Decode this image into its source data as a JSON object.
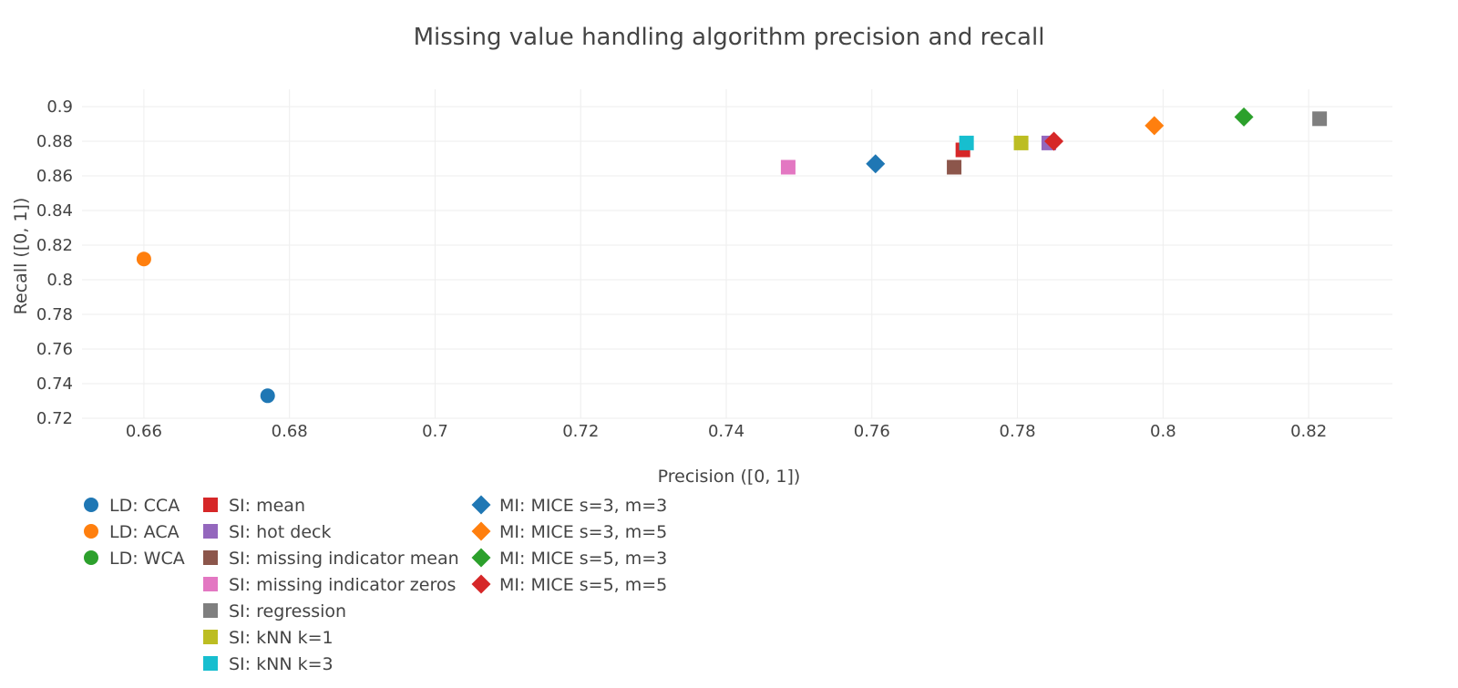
{
  "chart_data": {
    "type": "scatter",
    "title": "Missing value handling algorithm precision and recall",
    "xlabel": "Precision ([0, 1])",
    "ylabel": "Recall ([0, 1])",
    "xlim": [
      0.6515,
      0.8315
    ],
    "ylim": [
      0.72,
      0.91
    ],
    "x_ticks": [
      "0.66",
      "0.68",
      "0.7",
      "0.72",
      "0.74",
      "0.76",
      "0.78",
      "0.8",
      "0.82"
    ],
    "y_ticks": [
      "0.72",
      "0.74",
      "0.76",
      "0.78",
      "0.8",
      "0.82",
      "0.84",
      "0.86",
      "0.88",
      "0.9"
    ],
    "grid": true,
    "legend_position": "bottom-left",
    "series": [
      {
        "name": "LD: CCA",
        "marker": "circle",
        "color": "#1f77b4",
        "x": 0.677,
        "y": 0.733
      },
      {
        "name": "LD: ACA",
        "marker": "circle",
        "color": "#ff7f0e",
        "x": 0.66,
        "y": 0.812
      },
      {
        "name": "LD: WCA",
        "marker": "circle",
        "color": "#2ca02c",
        "x": null,
        "y": null
      },
      {
        "name": "SI: mean",
        "marker": "square",
        "color": "#d62728",
        "x": 0.7725,
        "y": 0.875
      },
      {
        "name": "SI: hot deck",
        "marker": "square",
        "color": "#9467bd",
        "x": 0.7843,
        "y": 0.879
      },
      {
        "name": "SI: missing indicator mean",
        "marker": "square",
        "color": "#8c564b",
        "x": 0.7713,
        "y": 0.865
      },
      {
        "name": "SI: missing indicator zeros",
        "marker": "square",
        "color": "#e377c2",
        "x": 0.7485,
        "y": 0.865
      },
      {
        "name": "SI: regression",
        "marker": "square",
        "color": "#7f7f7f",
        "x": 0.8215,
        "y": 0.893
      },
      {
        "name": "SI: kNN k=1",
        "marker": "square",
        "color": "#bcbd22",
        "x": 0.7805,
        "y": 0.879
      },
      {
        "name": "SI: kNN k=3",
        "marker": "square",
        "color": "#17becf",
        "x": 0.773,
        "y": 0.879
      },
      {
        "name": "MI: MICE s=3, m=3",
        "marker": "diamond",
        "color": "#1f77b4",
        "x": 0.7605,
        "y": 0.867
      },
      {
        "name": "MI: MICE s=3, m=5",
        "marker": "diamond",
        "color": "#ff7f0e",
        "x": 0.7988,
        "y": 0.889
      },
      {
        "name": "MI: MICE s=5, m=3",
        "marker": "diamond",
        "color": "#2ca02c",
        "x": 0.8111,
        "y": 0.894
      },
      {
        "name": "MI: MICE s=5, m=5",
        "marker": "diamond",
        "color": "#d62728",
        "x": 0.785,
        "y": 0.88
      }
    ]
  }
}
